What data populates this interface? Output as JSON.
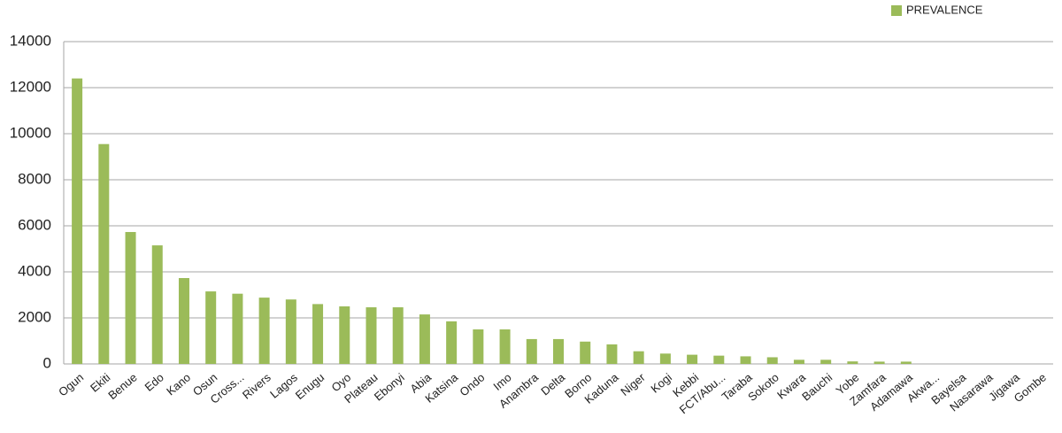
{
  "chart_data": {
    "type": "bar",
    "categories": [
      "Ogun",
      "Ekiti",
      "Benue",
      "Edo",
      "Kano",
      "Osun",
      "Cross...",
      "Rivers",
      "Lagos",
      "Enugu",
      "Oyo",
      "Plateau",
      "Ebonyi",
      "Abia",
      "Katsina",
      "Ondo",
      "Imo",
      "Anambra",
      "Delta",
      "Borno",
      "Kaduna",
      "Niger",
      "Kogi",
      "Kebbi",
      "FCT/Abu...",
      "Taraba",
      "Sokoto",
      "Kwara",
      "Bauchi",
      "Yobe",
      "Zamfara",
      "Adamawa",
      "Akwa...",
      "Bayelsa",
      "Nasarawa",
      "Jigawa",
      "Gombe"
    ],
    "series": [
      {
        "name": "PREVALENCE",
        "color": "#9bbb59",
        "values": [
          12400,
          9550,
          5730,
          5150,
          3730,
          3150,
          3050,
          2880,
          2800,
          2600,
          2500,
          2460,
          2460,
          2150,
          1850,
          1500,
          1500,
          1080,
          1080,
          970,
          850,
          550,
          450,
          400,
          360,
          330,
          290,
          180,
          180,
          110,
          100,
          100,
          0,
          0,
          0,
          0,
          0
        ]
      }
    ],
    "ylim": [
      0,
      14000
    ],
    "yticks": [
      0,
      2000,
      4000,
      6000,
      8000,
      10000,
      12000,
      14000
    ],
    "grid": true,
    "legend": "top-right"
  }
}
